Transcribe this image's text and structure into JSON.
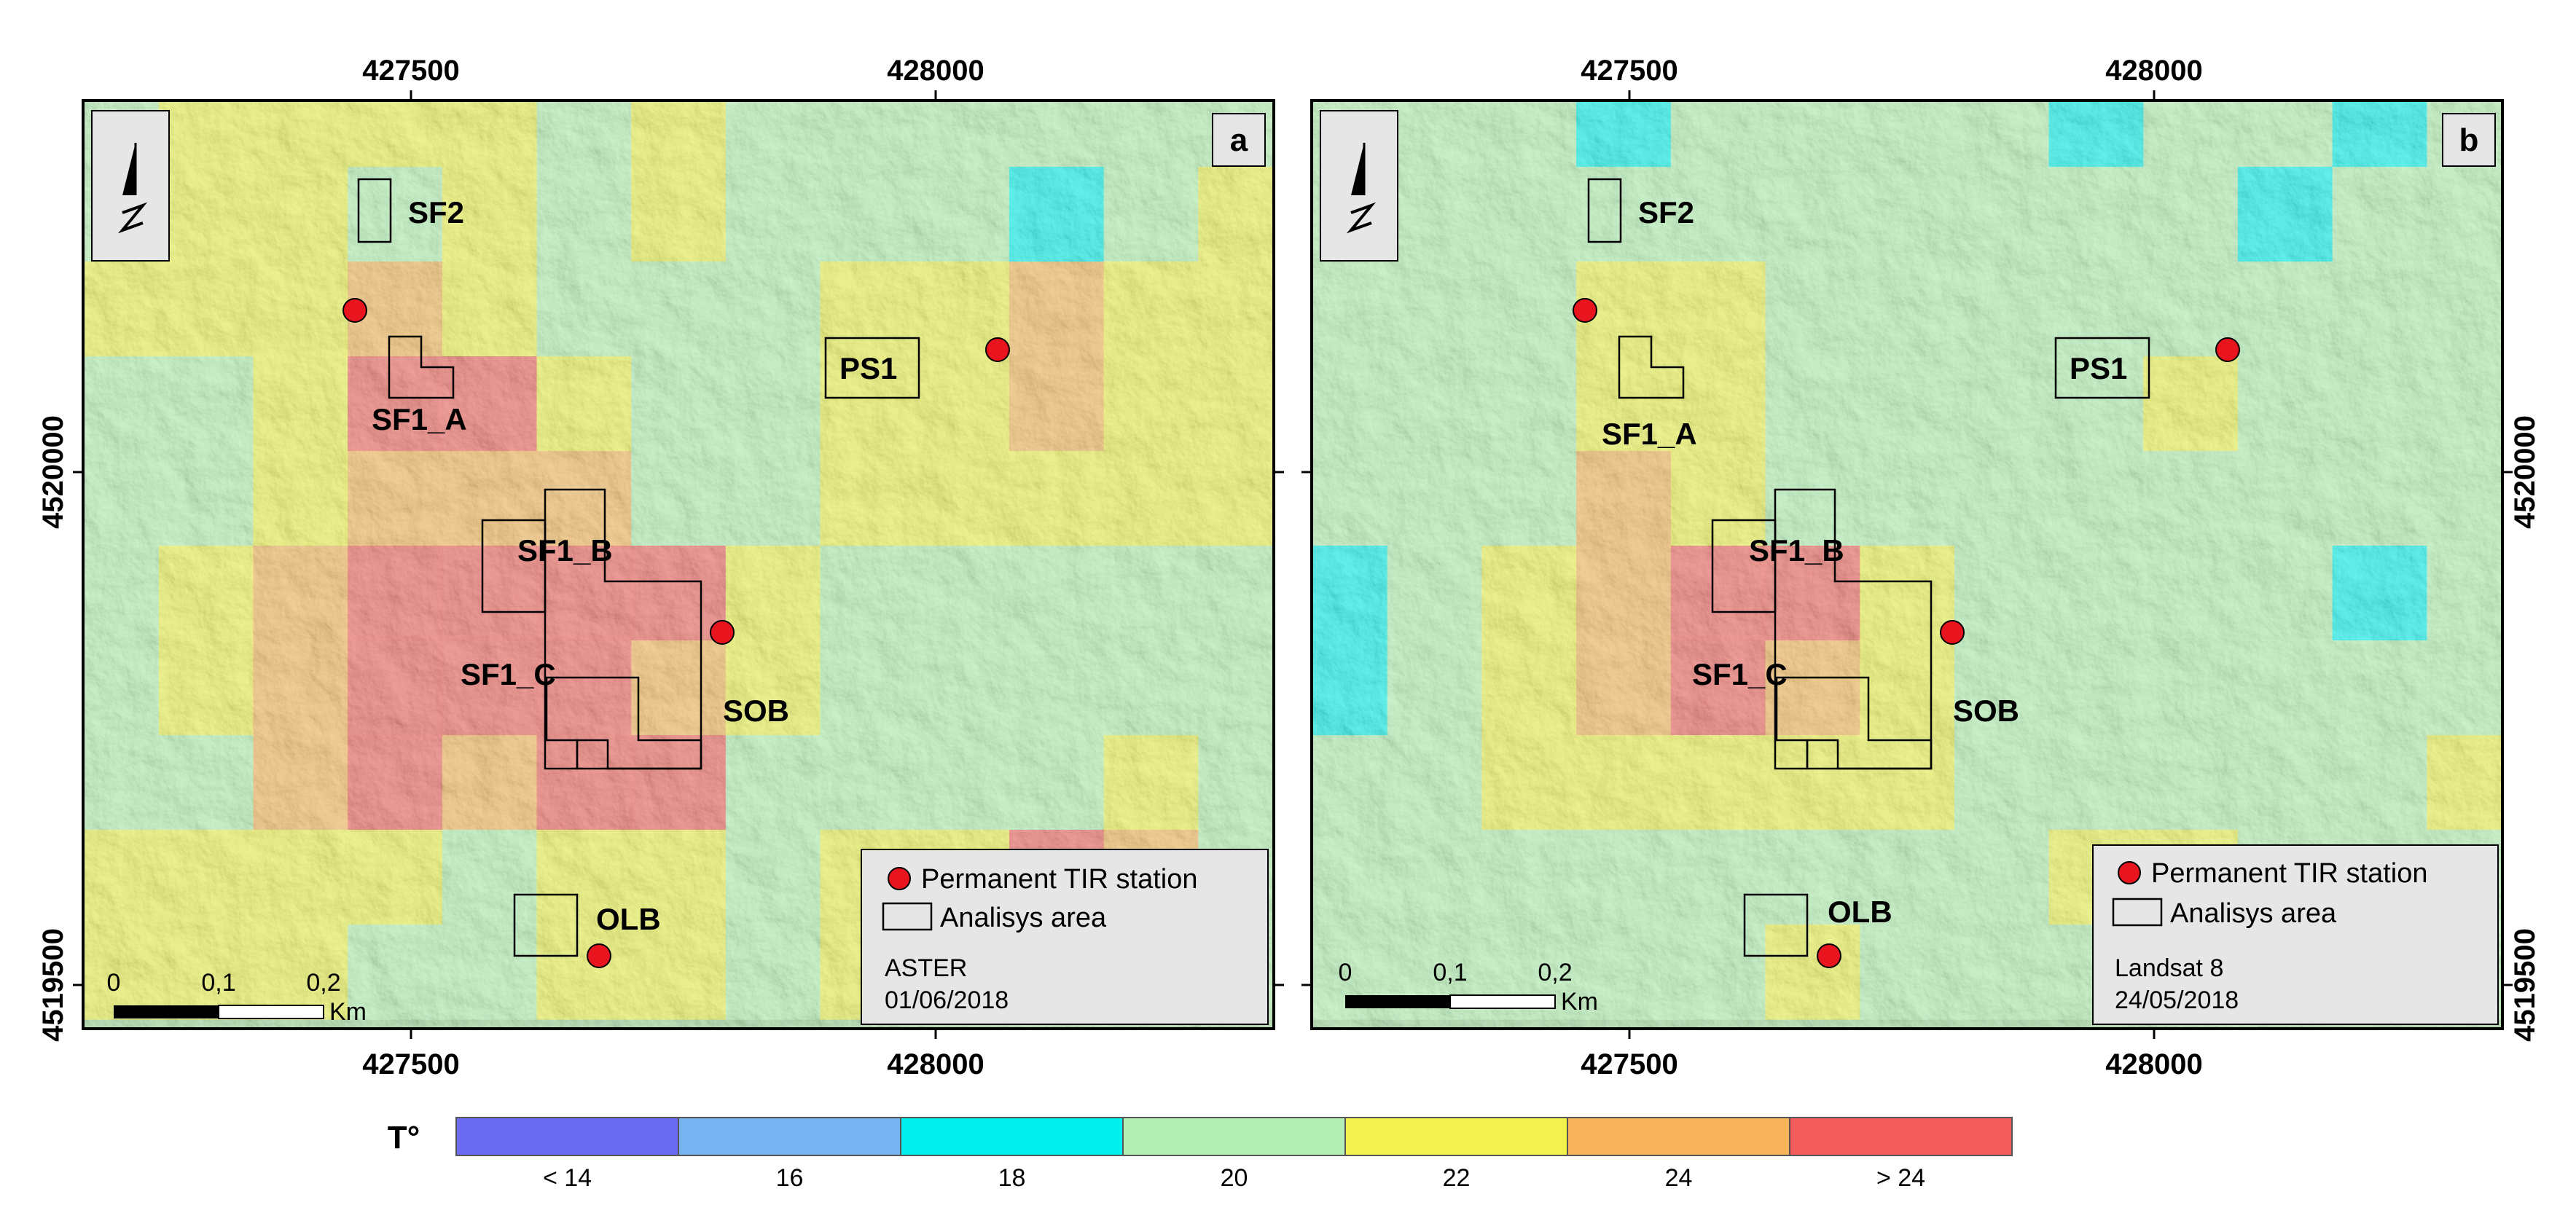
{
  "colors": {
    "lt14": "#6A6AF2",
    "c16": "#78B4F2",
    "c18": "#00F0F0",
    "c20": "#B4F0B4",
    "c22": "#F2F24E",
    "c24": "#F8B45A",
    "gt24": "#F25C5C",
    "station": "#E8141E",
    "hill_base": "#9FD49A"
  },
  "colorbar": {
    "title": "T°",
    "classes": [
      {
        "label": "< 14",
        "color": "lt14"
      },
      {
        "label": "16",
        "color": "c16"
      },
      {
        "label": "18",
        "color": "c18"
      },
      {
        "label": "20",
        "color": "c20"
      },
      {
        "label": "22",
        "color": "c22"
      },
      {
        "label": "24",
        "color": "c24"
      },
      {
        "label": "> 24",
        "color": "gt24"
      }
    ]
  },
  "axes": {
    "x_ticks": [
      427500,
      428000
    ],
    "y_ticks": [
      4520000,
      4519500
    ],
    "x_tick_labels": [
      "427500",
      "428000"
    ],
    "y_tick_labels": [
      "4520000",
      "4519500"
    ],
    "x_range": [
      427200,
      428350
    ],
    "y_range": [
      4519460,
      4520350
    ]
  },
  "legend": {
    "station_label": "Permanent TIR station",
    "area_label": "Analisys area"
  },
  "scalebar": {
    "ticks": [
      "0",
      "0,1",
      "0,2"
    ],
    "unit": "Km"
  },
  "area_labels": {
    "sf2": "SF2",
    "sf1a": "SF1_A",
    "sf1b": "SF1_B",
    "sf1c": "SF1_C",
    "ps1": "PS1",
    "sob": "SOB",
    "olb": "OLB"
  },
  "panels": [
    {
      "letter": "a",
      "sensor": "ASTER",
      "date": "01/06/2018",
      "grid": [
        "c20 c22 c22 c22 c22 c20 c22 c20 c20 c20 c20 c20 c20",
        "c20 c22 c22 c20 c22 c20 c22 c20 c20 c20 c18 c20 c22",
        "c22 c22 c22 c24 c22 c20 c20 c20 c22 c22 c24 c22 c22",
        "c20 c20 c22 gt24 gt24 c22 c20 c20 c22 c22 c24 c22 c22",
        "c20 c20 c22 c24 c24 c24 c20 c20 c22 c22 c22 c22 c22",
        "c20 c22 c24 gt24 gt24 gt24 gt24 c22 c20 c20 c20 c20 c20",
        "c20 c22 c24 gt24 gt24 gt24 c24 c22 c20 c20 c20 c20 c20",
        "c20 c20 c24 gt24 c24 gt24 gt24 c20 c20 c20 c20 c22 c20",
        "c22 c22 c22 c22 c20 c22 c22 c20 c22 c22 gt24 c24 c20",
        "c22 c22 c22 c20 c20 c22 c22 c20 c22 c22 c20 c20 c20"
      ]
    },
    {
      "letter": "b",
      "sensor": "Landsat 8",
      "date": "24/05/2018",
      "grid": [
        "c20 c20 c20 c18 c20 c20 c20 c20 c18 c20 c20 c18 c20",
        "c20 c20 c20 c20 c20 c20 c20 c20 c20 c20 c18 c20 c20",
        "c20 c20 c20 c22 c22 c20 c20 c20 c20 c20 c20 c20 c20",
        "c20 c20 c20 c22 c22 c20 c20 c20 c20 c22 c20 c20 c20",
        "c20 c20 c20 c24 c22 c20 c20 c20 c20 c20 c20 c20 c20",
        "c18 c20 c22 c24 gt24 gt24 c22 c20 c20 c20 c20 c18 c20",
        "c18 c20 c22 c24 gt24 c24 c22 c20 c20 c20 c20 c20 c20",
        "c20 c20 c22 c22 c22 c22 c22 c20 c20 c20 c20 c20 c22",
        "c20 c20 c20 c20 c20 c20 c20 c20 c22 c22 c20 c20 c20",
        "c20 c20 c20 c20 c20 c22 c20 c20 c20 c20 c20 c20 c20"
      ]
    }
  ]
}
